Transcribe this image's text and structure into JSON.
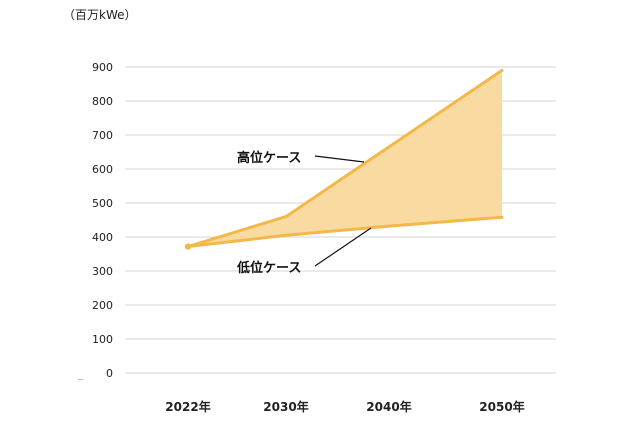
{
  "chart_data": {
    "type": "area",
    "unit_label": "（百万kWe）",
    "categories": [
      "2022年",
      "2030年",
      "2040年",
      "2050年"
    ],
    "x_positions": [
      2022,
      2030,
      2040,
      2050
    ],
    "ylim": [
      0,
      900
    ],
    "yticks": [
      0,
      100,
      200,
      300,
      400,
      500,
      600,
      700,
      800,
      900
    ],
    "grid": true,
    "series": [
      {
        "name": "高位ケース",
        "x": [
          2022,
          2030,
          2050
        ],
        "values": [
          372,
          460,
          890
        ]
      },
      {
        "name": "低位ケース",
        "x": [
          2022,
          2030,
          2040,
          2050
        ],
        "values": [
          372,
          405,
          432,
          458
        ]
      }
    ],
    "colors": {
      "line": "#f3b84a",
      "fill": "#f9dba2",
      "grid": "#d6d6d6",
      "leader": "#111111"
    }
  }
}
